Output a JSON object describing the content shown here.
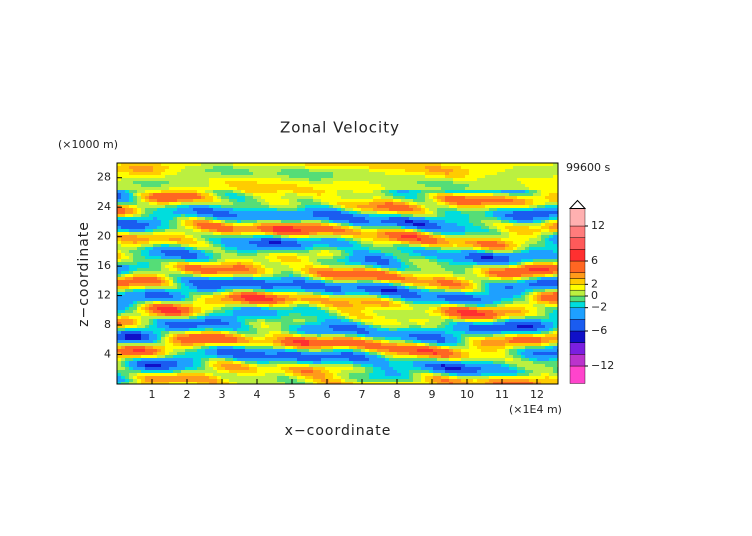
{
  "chart_data": {
    "type": "contour",
    "title": "Zonal Velocity",
    "x_label": "x−coordinate",
    "y_label": "z−coordinate",
    "x_unit": "(×1E4 m)",
    "y_unit": "(×1000 m)",
    "time_label": "99600 s",
    "xlim": [
      0,
      12.6
    ],
    "ylim": [
      0,
      30
    ],
    "xticks": [
      1,
      2,
      3,
      4,
      5,
      6,
      7,
      8,
      9,
      10,
      11,
      12
    ],
    "yticks": [
      4,
      8,
      12,
      16,
      20,
      24,
      28
    ],
    "colorbar": {
      "clim": [
        -15,
        15
      ],
      "ticks": [
        12,
        6,
        2,
        0,
        {
          "value": -2,
          "label": "−2"
        },
        {
          "value": -6,
          "label": "−6"
        },
        {
          "value": -12,
          "label": "−12"
        }
      ],
      "levels": [
        -15,
        -12,
        -10,
        -8,
        -6,
        -4,
        -2,
        -1,
        0,
        1,
        2,
        3,
        4,
        6,
        8,
        10,
        12,
        15
      ],
      "colors": [
        "#ff44cc",
        "#bb33cc",
        "#7a1fe0",
        "#1010c8",
        "#1a5cf0",
        "#1ea0ff",
        "#00dddd",
        "#55dd77",
        "#bbf040",
        "#ffff00",
        "#ffcc00",
        "#ff9a1a",
        "#ff6622",
        "#ff3030",
        "#ff5a5a",
        "#ff7c7c",
        "#ffb0b0"
      ]
    }
  }
}
